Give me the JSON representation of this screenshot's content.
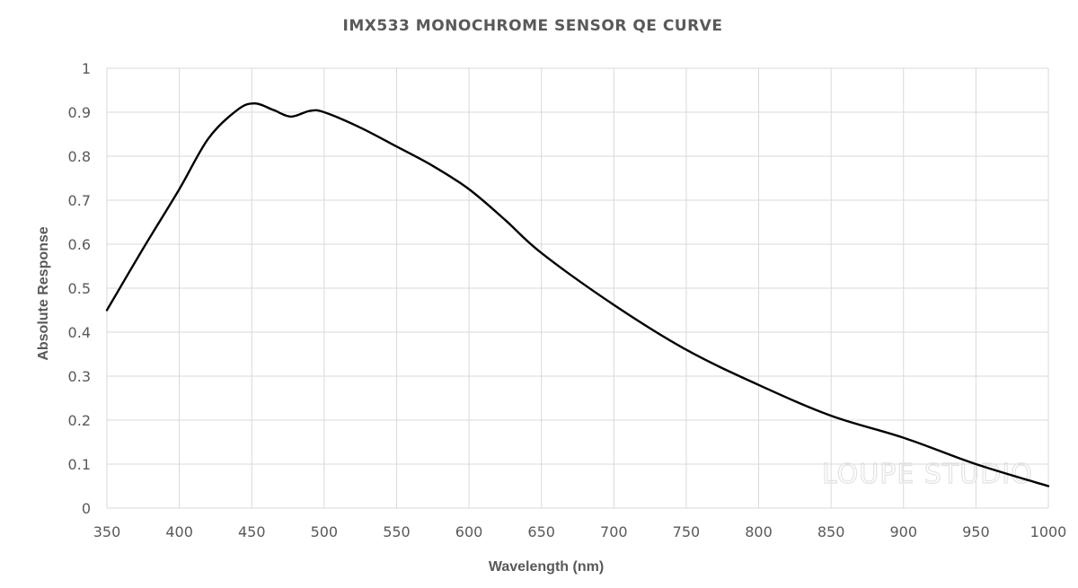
{
  "chart_data": {
    "type": "line",
    "title": "IMX533 MONOCHROME SENSOR QE CURVE",
    "xlabel": "Wavelength (nm)",
    "ylabel": "Absolute Response",
    "xlim": [
      350,
      1000
    ],
    "ylim": [
      0,
      1
    ],
    "x_ticks": [
      "350",
      "400",
      "450",
      "500",
      "550",
      "600",
      "650",
      "700",
      "750",
      "800",
      "850",
      "900",
      "950",
      "1000"
    ],
    "y_ticks": [
      "0",
      "0.1",
      "0.2",
      "0.3",
      "0.4",
      "0.5",
      "0.6",
      "0.7",
      "0.8",
      "0.9",
      "1"
    ],
    "grid": true,
    "legend": "none",
    "series": [
      {
        "color": "#000000",
        "x": [
          350,
          375,
          400,
          420,
          440,
          452,
          465,
          477,
          490,
          500,
          525,
          550,
          575,
          600,
          625,
          650,
          700,
          750,
          800,
          850,
          900,
          950,
          1000
        ],
        "y": [
          0.45,
          0.59,
          0.725,
          0.84,
          0.905,
          0.92,
          0.905,
          0.89,
          0.903,
          0.9,
          0.865,
          0.822,
          0.778,
          0.725,
          0.655,
          0.58,
          0.462,
          0.36,
          0.28,
          0.21,
          0.16,
          0.1,
          0.05
        ]
      }
    ]
  },
  "watermark": "LOUPE STUDIO"
}
